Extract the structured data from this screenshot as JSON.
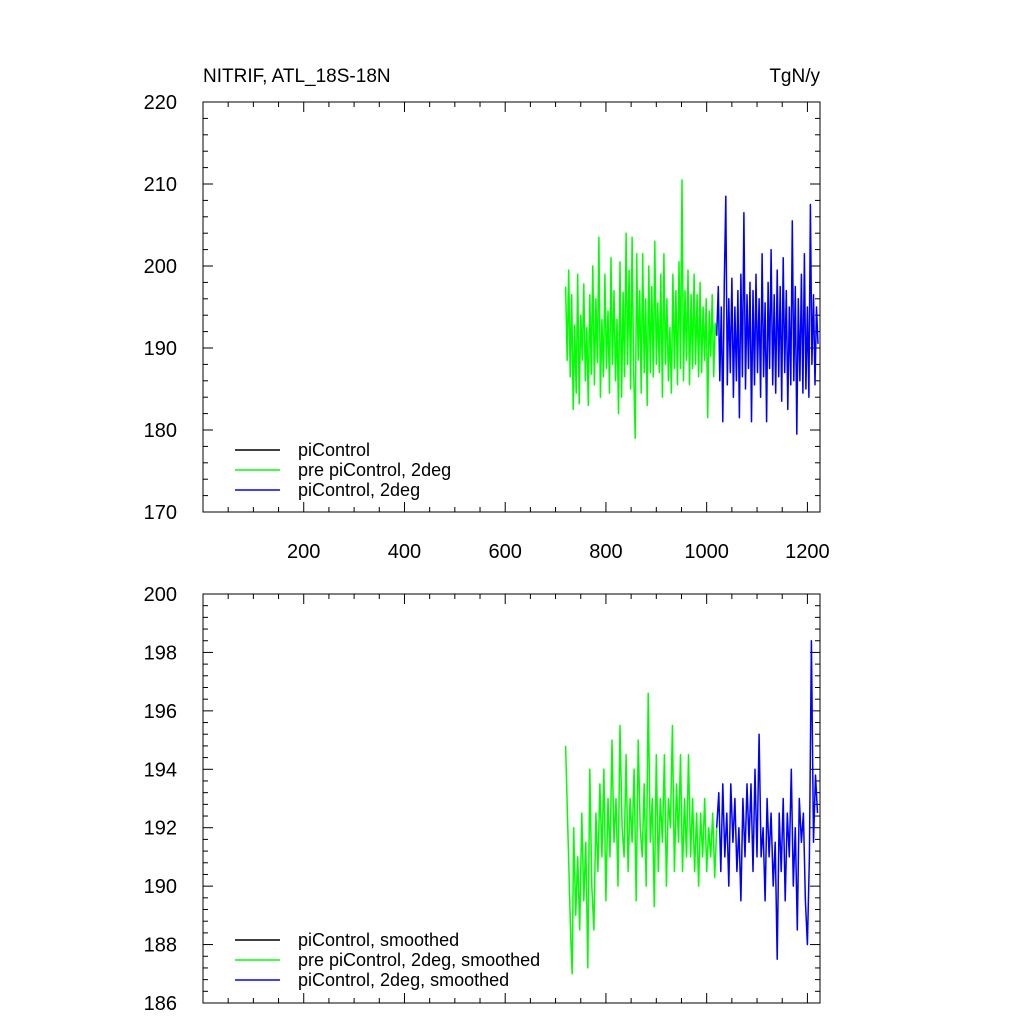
{
  "chart_data": [
    {
      "type": "line",
      "title": "NITRIF, ATL_18S-18N",
      "units": "TgN/y",
      "xlabel": "",
      "ylabel": "",
      "xlim": [
        0,
        1225
      ],
      "ylim": [
        170,
        220
      ],
      "xticks": [
        200,
        400,
        600,
        800,
        1000,
        1200
      ],
      "xtick_labels": [
        "200",
        "400",
        "600",
        "800",
        "1000",
        "1200"
      ],
      "yticks": [
        170,
        180,
        190,
        200,
        210,
        220
      ],
      "ytick_labels": [
        "170",
        "180",
        "190",
        "200",
        "210",
        "220"
      ],
      "legend_position": "bottom-left",
      "series": [
        {
          "name": "piControl",
          "color": "#000000",
          "x": [],
          "y": []
        },
        {
          "name": "pre piControl, 2deg",
          "color": "#00ff00",
          "x": [
            720,
            723,
            726,
            729,
            732,
            735,
            738,
            741,
            744,
            747,
            750,
            753,
            756,
            759,
            762,
            765,
            768,
            771,
            774,
            777,
            780,
            783,
            786,
            789,
            792,
            795,
            798,
            801,
            804,
            807,
            810,
            813,
            816,
            819,
            822,
            825,
            828,
            831,
            834,
            837,
            840,
            843,
            846,
            849,
            852,
            855,
            858,
            861,
            864,
            867,
            870,
            873,
            876,
            879,
            882,
            885,
            888,
            891,
            894,
            897,
            900,
            903,
            906,
            909,
            912,
            915,
            918,
            921,
            924,
            927,
            930,
            933,
            936,
            939,
            942,
            945,
            948,
            951,
            954,
            957,
            960,
            963,
            966,
            969,
            972,
            975,
            978,
            981,
            984,
            987,
            990,
            993,
            996,
            999,
            1002,
            1005,
            1008,
            1011,
            1014,
            1017,
            1020
          ],
          "y": [
            197.5,
            188.5,
            199.5,
            186.5,
            196.5,
            182.5,
            192.8,
            184.5,
            199.0,
            183.2,
            194.0,
            188.5,
            197.8,
            186.0,
            192.5,
            183.0,
            196.5,
            186.8,
            200.0,
            185.5,
            196.0,
            188.2,
            203.5,
            184.0,
            193.5,
            186.5,
            199.0,
            187.5,
            194.5,
            184.5,
            201.0,
            188.0,
            197.0,
            186.0,
            193.5,
            182.0,
            200.5,
            184.0,
            196.8,
            186.5,
            204.0,
            188.0,
            199.5,
            185.0,
            203.5,
            187.5,
            179.0,
            201.5,
            188.5,
            197.0,
            184.5,
            201.5,
            187.0,
            196.0,
            183.0,
            200.0,
            187.0,
            197.5,
            186.5,
            203.0,
            188.0,
            195.5,
            187.0,
            199.0,
            184.0,
            201.5,
            188.0,
            196.0,
            186.0,
            192.5,
            184.5,
            199.0,
            187.5,
            197.0,
            185.5,
            200.5,
            187.5,
            210.5,
            186.0,
            197.0,
            188.5,
            199.5,
            185.5,
            196.5,
            187.5,
            199.0,
            188.0,
            196.5,
            186.5,
            198.0,
            187.0,
            195.0,
            188.5,
            196.0,
            181.5,
            194.5,
            189.0,
            196.5,
            186.5,
            193.0,
            191.5
          ]
        },
        {
          "name": "piControl, 2deg",
          "color": "#0000ff",
          "x": [
            1020,
            1023,
            1026,
            1029,
            1032,
            1035,
            1038,
            1041,
            1044,
            1047,
            1050,
            1053,
            1056,
            1059,
            1062,
            1065,
            1068,
            1071,
            1074,
            1077,
            1080,
            1083,
            1086,
            1089,
            1092,
            1095,
            1098,
            1101,
            1104,
            1107,
            1110,
            1113,
            1116,
            1119,
            1122,
            1125,
            1128,
            1131,
            1134,
            1137,
            1140,
            1143,
            1146,
            1149,
            1152,
            1155,
            1158,
            1161,
            1164,
            1167,
            1170,
            1173,
            1176,
            1179,
            1182,
            1185,
            1188,
            1191,
            1194,
            1197,
            1200,
            1203,
            1206,
            1209,
            1212,
            1215,
            1218,
            1221
          ],
          "y": [
            191.5,
            197.5,
            186.0,
            195.0,
            181.0,
            198.0,
            208.5,
            185.5,
            196.0,
            187.0,
            198.5,
            184.0,
            195.0,
            186.0,
            197.0,
            181.5,
            199.0,
            186.5,
            206.5,
            185.0,
            196.5,
            187.5,
            198.0,
            181.0,
            197.0,
            185.5,
            199.0,
            187.0,
            196.0,
            184.0,
            201.5,
            186.5,
            195.5,
            181.0,
            198.0,
            187.5,
            202.0,
            185.5,
            196.5,
            184.5,
            199.5,
            186.5,
            197.5,
            183.5,
            201.0,
            187.0,
            197.0,
            182.5,
            195.0,
            185.5,
            205.5,
            186.0,
            197.5,
            179.5,
            196.0,
            186.0,
            199.0,
            184.5,
            201.5,
            185.0,
            195.0,
            184.0,
            207.5,
            188.0,
            196.5,
            185.5,
            195.0,
            190.5
          ]
        }
      ]
    },
    {
      "type": "line",
      "title": "",
      "xlabel": "",
      "ylabel": "",
      "xlim": [
        0,
        1225
      ],
      "ylim": [
        186,
        200
      ],
      "xticks": [
        200,
        400,
        600,
        800,
        1000,
        1200
      ],
      "yticks": [
        186,
        188,
        190,
        192,
        194,
        196,
        198,
        200
      ],
      "ytick_labels": [
        "186",
        "188",
        "190",
        "192",
        "194",
        "196",
        "198",
        "200"
      ],
      "legend_position": "bottom-left",
      "series": [
        {
          "name": "piControl, smoothed",
          "color": "#000000",
          "x": [],
          "y": []
        },
        {
          "name": "pre piControl, 2deg, smoothed",
          "color": "#00ff00",
          "x": [
            720,
            725,
            730,
            733,
            736,
            740,
            744,
            748,
            752,
            756,
            760,
            764,
            768,
            772,
            776,
            780,
            784,
            788,
            792,
            796,
            800,
            804,
            808,
            812,
            816,
            820,
            824,
            828,
            832,
            836,
            840,
            844,
            848,
            852,
            856,
            860,
            864,
            868,
            872,
            876,
            880,
            884,
            888,
            892,
            896,
            900,
            904,
            908,
            912,
            916,
            920,
            924,
            928,
            932,
            936,
            940,
            944,
            948,
            952,
            956,
            960,
            964,
            968,
            972,
            976,
            980,
            984,
            988,
            992,
            996,
            1000,
            1004,
            1008,
            1012,
            1016,
            1020
          ],
          "y": [
            194.8,
            191.5,
            188.3,
            187.0,
            192.0,
            189.0,
            191.0,
            188.5,
            192.5,
            189.5,
            191.5,
            187.2,
            194.0,
            190.0,
            188.5,
            192.5,
            190.5,
            193.5,
            191.0,
            194.0,
            189.5,
            193.0,
            191.0,
            195.0,
            191.5,
            193.0,
            190.0,
            195.5,
            192.0,
            191.0,
            194.5,
            190.5,
            193.0,
            191.5,
            194.0,
            189.5,
            195.0,
            192.0,
            191.0,
            193.5,
            190.0,
            196.6,
            191.5,
            193.0,
            189.3,
            194.5,
            190.5,
            193.0,
            191.5,
            194.5,
            190.0,
            193.0,
            192.0,
            195.5,
            190.5,
            193.5,
            191.5,
            194.5,
            190.5,
            193.0,
            191.0,
            194.5,
            191.0,
            193.0,
            190.5,
            192.5,
            190.0,
            192.5,
            191.0,
            193.0,
            190.5,
            192.0,
            191.0,
            192.5,
            190.3,
            192.0
          ]
        },
        {
          "name": "piControl, 2deg, smoothed",
          "color": "#0000ff",
          "x": [
            1020,
            1024,
            1028,
            1032,
            1036,
            1040,
            1044,
            1048,
            1052,
            1056,
            1060,
            1064,
            1068,
            1072,
            1076,
            1080,
            1084,
            1088,
            1092,
            1096,
            1100,
            1104,
            1108,
            1112,
            1116,
            1120,
            1124,
            1128,
            1132,
            1136,
            1140,
            1144,
            1148,
            1152,
            1156,
            1160,
            1164,
            1168,
            1172,
            1176,
            1180,
            1184,
            1188,
            1192,
            1196,
            1200,
            1204,
            1208,
            1212,
            1216,
            1220
          ],
          "y": [
            192.0,
            193.2,
            190.5,
            193.5,
            191.0,
            192.5,
            190.0,
            193.5,
            191.5,
            193.0,
            190.5,
            192.0,
            189.5,
            193.0,
            191.0,
            193.5,
            191.5,
            193.5,
            190.5,
            194.0,
            191.0,
            195.2,
            191.0,
            192.0,
            189.5,
            193.0,
            191.0,
            192.5,
            190.0,
            191.5,
            187.5,
            192.5,
            190.5,
            193.0,
            189.5,
            192.5,
            191.0,
            194.0,
            190.0,
            192.0,
            188.5,
            193.0,
            191.5,
            192.5,
            189.5,
            188.0,
            191.0,
            198.4,
            191.5,
            193.8,
            192.5
          ]
        }
      ]
    }
  ]
}
